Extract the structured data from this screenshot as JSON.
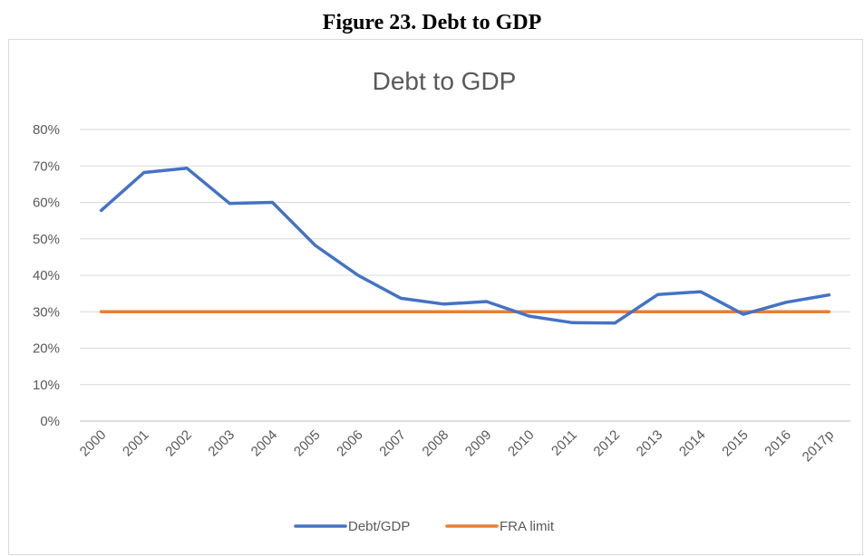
{
  "figure_caption": "Figure 23. Debt to GDP",
  "chart_data": {
    "type": "line",
    "title": "Debt to GDP",
    "xlabel": "",
    "ylabel": "",
    "categories": [
      "2000",
      "2001",
      "2002",
      "2003",
      "2004",
      "2005",
      "2006",
      "2007",
      "2008",
      "2009",
      "2010",
      "2011",
      "2012",
      "2013",
      "2014",
      "2015",
      "2016",
      "2017p"
    ],
    "ylim": [
      0,
      80
    ],
    "yticks": [
      "0%",
      "10%",
      "20%",
      "30%",
      "40%",
      "50%",
      "60%",
      "70%",
      "80%"
    ],
    "grid": true,
    "legend_position": "bottom",
    "series": [
      {
        "name": "Debt/GDP",
        "color": "#4472c4",
        "values": [
          57.8,
          68.2,
          69.4,
          59.7,
          60.0,
          48.2,
          40.0,
          33.7,
          32.1,
          32.8,
          28.8,
          27.0,
          26.9,
          34.7,
          35.5,
          29.3,
          32.6,
          34.6
        ]
      },
      {
        "name": "FRA limit",
        "color": "#ed7d31",
        "values": [
          30,
          30,
          30,
          30,
          30,
          30,
          30,
          30,
          30,
          30,
          30,
          30,
          30,
          30,
          30,
          30,
          30,
          30
        ]
      }
    ]
  }
}
